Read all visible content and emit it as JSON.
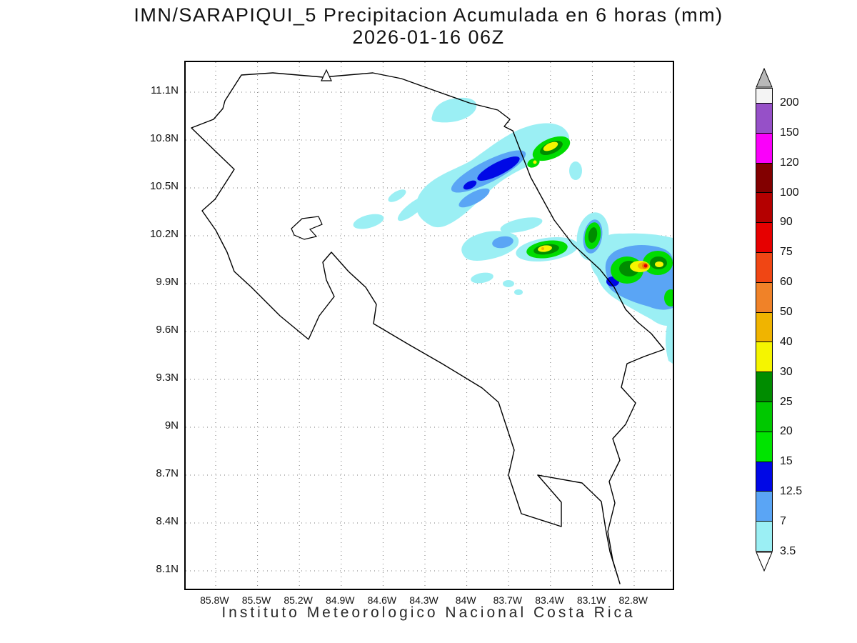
{
  "title": {
    "line1": "IMN/SARAPIQUI_5 Precipitacion Acumulada en 6 horas (mm)",
    "line2": "2026-01-16 06Z"
  },
  "footer": "Instituto Meteorologico Nacional Costa Rica",
  "axes": {
    "y_labels": [
      "11.1N",
      "10.8N",
      "10.5N",
      "10.2N",
      "9.9N",
      "9.6N",
      "9.3N",
      "9N",
      "8.7N",
      "8.4N",
      "8.1N"
    ],
    "x_labels": [
      "85.8W",
      "85.5W",
      "85.2W",
      "84.9W",
      "84.6W",
      "84.3W",
      "84W",
      "83.7W",
      "83.4W",
      "83.1W",
      "82.8W"
    ]
  },
  "colorbar": {
    "labels_top_to_bottom": [
      "200",
      "150",
      "120",
      "100",
      "90",
      "75",
      "60",
      "50",
      "40",
      "30",
      "25",
      "20",
      "15",
      "12.5",
      "7",
      "3.5"
    ],
    "segments_top_to_bottom": [
      {
        "color": "#f4f4f4"
      },
      {
        "color": "#9650c8"
      },
      {
        "color": "#fa00fa"
      },
      {
        "color": "#820000"
      },
      {
        "color": "#b40000"
      },
      {
        "color": "#e60000"
      },
      {
        "color": "#f04614"
      },
      {
        "color": "#f08228"
      },
      {
        "color": "#f0b400"
      },
      {
        "color": "#f5f500"
      },
      {
        "color": "#008c00"
      },
      {
        "color": "#00c800"
      },
      {
        "color": "#00e400"
      },
      {
        "color": "#0008e6"
      },
      {
        "color": "#5aa5f5"
      },
      {
        "color": "#9beff4"
      }
    ],
    "arrow_top_color": "#b8b8b8",
    "arrow_bottom_color": "#ffffff"
  }
}
